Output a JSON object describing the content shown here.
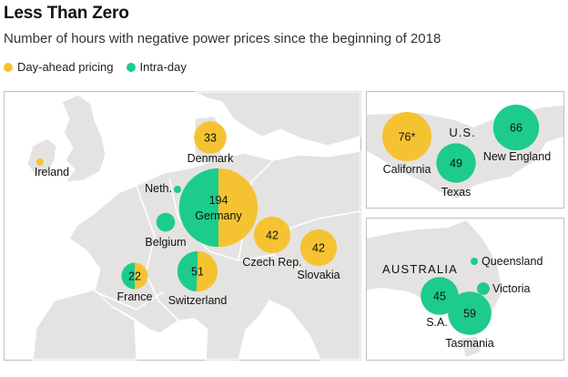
{
  "title": "Less Than Zero",
  "subtitle": "Number of hours with negative power prices since the beginning of 2018",
  "colors": {
    "day_ahead": "#f5c332",
    "intra_day": "#1dcb8c",
    "land": "#e4e3e1",
    "border": "#ffffff",
    "panel_border": "#bfbfbf"
  },
  "legend": [
    {
      "name": "Day-ahead pricing",
      "color": "#f5c332"
    },
    {
      "name": "Intra-day",
      "color": "#1dcb8c"
    }
  ],
  "chart_data": {
    "type": "bubble-map",
    "title": "Less Than Zero",
    "subtitle": "Number of hours with negative power prices since the beginning of 2018",
    "panels": [
      {
        "region": "Europe",
        "label": "",
        "points": [
          {
            "name": "Denmark",
            "total": 33,
            "day_ahead": 33,
            "intra_day": 0,
            "value_label": "33"
          },
          {
            "name": "Ireland",
            "total": 1,
            "day_ahead": 1,
            "intra_day": 0,
            "value_label": ""
          },
          {
            "name": "Neth.",
            "total": 1,
            "day_ahead": 0,
            "intra_day": 1,
            "value_label": ""
          },
          {
            "name": "Germany",
            "total": 194,
            "day_ahead": 97,
            "intra_day": 97,
            "value_label": "194"
          },
          {
            "name": "Belgium",
            "total": 11,
            "day_ahead": 0,
            "intra_day": 11,
            "value_label": ""
          },
          {
            "name": "Czech Rep.",
            "total": 42,
            "day_ahead": 42,
            "intra_day": 0,
            "value_label": "42"
          },
          {
            "name": "Slovakia",
            "total": 42,
            "day_ahead": 42,
            "intra_day": 0,
            "value_label": "42"
          },
          {
            "name": "France",
            "total": 22,
            "day_ahead": 11,
            "intra_day": 11,
            "value_label": "22"
          },
          {
            "name": "Switzerland",
            "total": 51,
            "day_ahead": 26,
            "intra_day": 25,
            "value_label": "51"
          }
        ]
      },
      {
        "region": "U.S.",
        "label": "U.S.",
        "points": [
          {
            "name": "California",
            "total": 76,
            "day_ahead": 76,
            "intra_day": 0,
            "value_label": "76*"
          },
          {
            "name": "New England",
            "total": 66,
            "day_ahead": 0,
            "intra_day": 66,
            "value_label": "66"
          },
          {
            "name": "Texas",
            "total": 49,
            "day_ahead": 0,
            "intra_day": 49,
            "value_label": "49"
          }
        ]
      },
      {
        "region": "Australia",
        "label": "AUSTRALIA",
        "points": [
          {
            "name": "Queensland",
            "total": 1,
            "day_ahead": 0,
            "intra_day": 1,
            "value_label": ""
          },
          {
            "name": "Victoria",
            "total": 5,
            "day_ahead": 0,
            "intra_day": 5,
            "value_label": ""
          },
          {
            "name": "S.A.",
            "total": 45,
            "day_ahead": 0,
            "intra_day": 45,
            "value_label": "45"
          },
          {
            "name": "Tasmania",
            "total": 59,
            "day_ahead": 0,
            "intra_day": 59,
            "value_label": "59"
          }
        ]
      }
    ]
  }
}
